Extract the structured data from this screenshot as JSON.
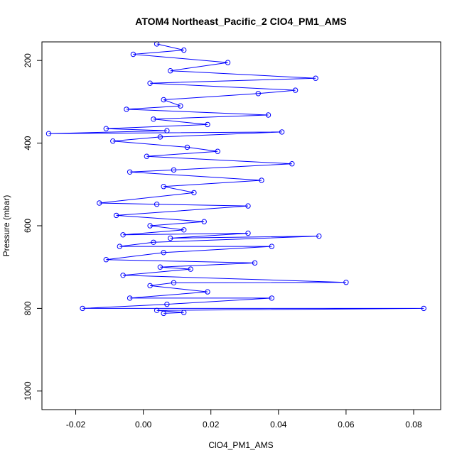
{
  "chart_data": {
    "type": "scatter",
    "title": "ATOM4 Northeast_Pacific_2 ClO4_PM1_AMS",
    "xlabel": "ClO4_PM1_AMS",
    "ylabel": "Pressure (mbar)",
    "xlim": [
      -0.03,
      0.088
    ],
    "ylim": [
      1045,
      155
    ],
    "y_inverted": true,
    "x_ticks": [
      -0.02,
      0.0,
      0.02,
      0.04,
      0.06,
      0.08
    ],
    "x_tick_labels": [
      "-0.02",
      "0.00",
      "0.02",
      "0.04",
      "0.06",
      "0.08"
    ],
    "y_ticks": [
      200,
      400,
      600,
      800,
      1000
    ],
    "y_tick_labels": [
      "200",
      "400",
      "600",
      "800",
      "1000"
    ],
    "grid": false,
    "legend": "none",
    "series_color": "#0000ff",
    "marker": "open-circle",
    "connected": true,
    "series": [
      {
        "x": [
          0.004,
          0.012,
          -0.003,
          0.025,
          0.008,
          0.051,
          0.002,
          0.045,
          0.034,
          0.006,
          0.011,
          -0.005,
          0.037,
          0.003,
          0.019,
          -0.011,
          0.007,
          -0.028,
          0.041,
          0.005,
          -0.009,
          0.013,
          0.022,
          0.001,
          0.044,
          0.009,
          -0.004,
          0.035,
          0.006,
          0.015,
          -0.013,
          0.004,
          0.031,
          -0.008,
          0.018,
          0.002,
          0.012,
          -0.006,
          0.031,
          0.008,
          0.052,
          0.003,
          -0.007,
          0.038,
          0.006,
          -0.011,
          0.033,
          0.005,
          0.014,
          -0.006,
          0.06,
          0.009,
          0.002,
          0.019,
          -0.004,
          0.038,
          0.007,
          -0.018,
          0.083,
          0.004,
          0.012,
          0.006
        ],
        "y": [
          160,
          175,
          185,
          205,
          225,
          243,
          255,
          272,
          280,
          295,
          310,
          318,
          332,
          342,
          355,
          365,
          370,
          377,
          373,
          385,
          395,
          410,
          420,
          432,
          450,
          465,
          470,
          490,
          505,
          520,
          545,
          548,
          552,
          575,
          590,
          600,
          610,
          622,
          618,
          630,
          625,
          640,
          650,
          650,
          665,
          682,
          690,
          700,
          705,
          720,
          737,
          738,
          745,
          760,
          775,
          775,
          790,
          800,
          800,
          805,
          810,
          812
        ]
      }
    ]
  }
}
